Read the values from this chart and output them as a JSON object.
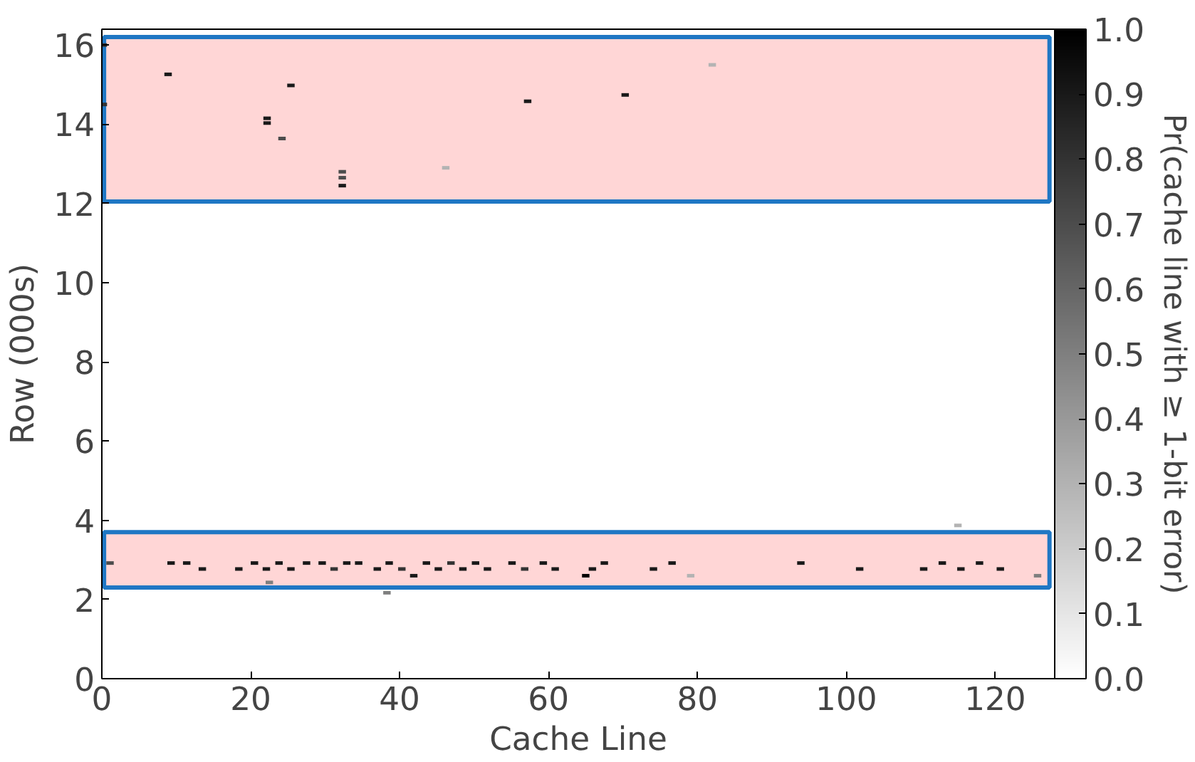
{
  "chart_data": {
    "type": "scatter",
    "xlabel": "Cache Line",
    "ylabel": "Row (000s)",
    "clabel": "Pr(cache line with ≥ 1-bit error)",
    "xlim": [
      0,
      128
    ],
    "xticks": [
      0,
      20,
      40,
      60,
      80,
      100,
      120
    ],
    "ylim": [
      0,
      16.4
    ],
    "yticks": [
      0,
      2,
      4,
      6,
      8,
      10,
      12,
      14,
      16
    ],
    "clim": [
      0,
      1
    ],
    "cticks": [
      {
        "value": 0,
        "label": "0.0"
      },
      0.1,
      0.2,
      0.3,
      0.4,
      0.5,
      0.6,
      0.7,
      0.8,
      0.9,
      {
        "value": 1,
        "label": "1.0"
      }
    ],
    "grid": false,
    "bands": [
      {
        "axis": "y",
        "from": 12.05,
        "to": 16.2,
        "color": "#ffd6d6"
      },
      {
        "axis": "y",
        "from": 2.3,
        "to": 3.7,
        "color": "#ffd6d6"
      }
    ],
    "x": [
      0.2,
      8.9,
      25.4,
      22.2,
      22.2,
      24.2,
      57.2,
      70.3,
      82,
      32.3,
      32.3,
      32.3,
      46.2,
      0.2,
      1.1,
      9.3,
      11.4,
      13.5,
      18.4,
      20.5,
      22.1,
      23.8,
      25.4,
      27.5,
      29.6,
      31.2,
      32.9,
      34.5,
      37.0,
      38.6,
      40.3,
      41.9,
      43.6,
      45.2,
      46.9,
      48.5,
      50.2,
      51.8,
      55.1,
      56.8,
      59.3,
      60.9,
      65.0,
      65.9,
      67.5,
      74.1,
      76.6,
      79.1,
      93.9,
      101.8,
      110.4,
      112.9,
      115.4,
      117.9,
      120.7,
      125.7,
      115,
      22.5,
      38.3
    ],
    "values": [
      16.0,
      15.26,
      14.98,
      14.15,
      14.03,
      13.64,
      14.58,
      14.74,
      15.5,
      12.8,
      12.65,
      12.45,
      12.9,
      14.5,
      2.92,
      2.92,
      2.92,
      2.77,
      2.77,
      2.92,
      2.77,
      2.92,
      2.77,
      2.92,
      2.92,
      2.77,
      2.92,
      2.92,
      2.77,
      2.92,
      2.77,
      2.6,
      2.92,
      2.77,
      2.92,
      2.77,
      2.92,
      2.77,
      2.92,
      2.77,
      2.92,
      2.77,
      2.6,
      2.77,
      2.92,
      2.77,
      2.92,
      2.6,
      2.92,
      2.77,
      2.77,
      2.92,
      2.77,
      2.92,
      2.77,
      2.6,
      3.87,
      2.43,
      2.17
    ],
    "cvalues": [
      0.8,
      0.9,
      0.9,
      0.9,
      0.9,
      0.7,
      0.9,
      0.9,
      0.3,
      0.7,
      0.7,
      0.9,
      0.3,
      0.8,
      0.7,
      0.9,
      0.9,
      0.9,
      0.9,
      0.9,
      0.9,
      0.9,
      0.9,
      0.9,
      0.9,
      0.8,
      0.9,
      0.9,
      0.9,
      0.9,
      0.8,
      0.9,
      0.9,
      0.9,
      0.8,
      0.9,
      0.9,
      0.9,
      0.9,
      0.8,
      0.9,
      0.9,
      1.0,
      0.9,
      0.9,
      0.9,
      0.9,
      0.3,
      0.9,
      0.9,
      0.9,
      0.9,
      0.9,
      0.9,
      0.9,
      0.5,
      0.3,
      0.5,
      0.5
    ]
  }
}
